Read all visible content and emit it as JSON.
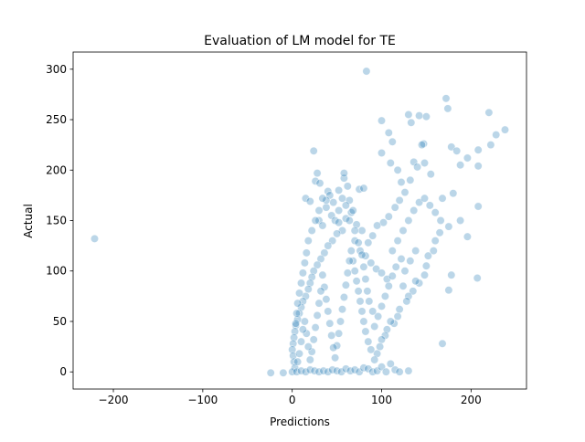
{
  "chart_data": {
    "type": "scatter",
    "title": "Evaluation of LM model for TE",
    "xlabel": "Predictions",
    "ylabel": "Actual",
    "xlim": [
      -245,
      262
    ],
    "ylim": [
      -17,
      317
    ],
    "xticks": [
      -200,
      -100,
      0,
      100,
      200
    ],
    "yticks": [
      0,
      50,
      100,
      150,
      200,
      250,
      300
    ],
    "xtick_labels": [
      "−200",
      "−100",
      "0",
      "100",
      "200"
    ],
    "ytick_labels": [
      "0",
      "50",
      "100",
      "150",
      "200",
      "250",
      "300"
    ],
    "grid": false,
    "legend": "none",
    "marker_color": "#1f77b4",
    "marker_opacity": 0.3,
    "points": [
      [
        -221,
        132
      ],
      [
        83,
        298
      ],
      [
        -24,
        -1
      ],
      [
        -10,
        -1
      ],
      [
        24,
        219
      ],
      [
        28,
        197
      ],
      [
        26,
        189
      ],
      [
        31,
        187
      ],
      [
        58,
        192
      ],
      [
        58,
        197
      ],
      [
        40,
        179
      ],
      [
        15,
        172
      ],
      [
        20,
        169
      ],
      [
        38,
        163
      ],
      [
        52,
        180
      ],
      [
        62,
        184
      ],
      [
        75,
        181
      ],
      [
        80,
        182
      ],
      [
        100,
        249
      ],
      [
        108,
        237
      ],
      [
        112,
        228
      ],
      [
        100,
        217
      ],
      [
        110,
        207
      ],
      [
        118,
        200
      ],
      [
        122,
        188
      ],
      [
        130,
        255
      ],
      [
        133,
        247
      ],
      [
        142,
        254
      ],
      [
        150,
        253
      ],
      [
        147,
        226
      ],
      [
        145,
        225
      ],
      [
        136,
        208
      ],
      [
        172,
        271
      ],
      [
        174,
        261
      ],
      [
        178,
        223
      ],
      [
        184,
        219
      ],
      [
        188,
        205
      ],
      [
        196,
        212
      ],
      [
        208,
        220
      ],
      [
        220,
        257
      ],
      [
        228,
        235
      ],
      [
        238,
        240
      ],
      [
        222,
        225
      ],
      [
        208,
        204
      ],
      [
        180,
        177
      ],
      [
        168,
        172
      ],
      [
        155,
        196
      ],
      [
        148,
        207
      ],
      [
        140,
        203
      ],
      [
        132,
        190
      ],
      [
        126,
        178
      ],
      [
        120,
        170
      ],
      [
        115,
        163
      ],
      [
        108,
        154
      ],
      [
        102,
        148
      ],
      [
        95,
        145
      ],
      [
        90,
        135
      ],
      [
        85,
        128
      ],
      [
        78,
        140
      ],
      [
        72,
        146
      ],
      [
        66,
        158
      ],
      [
        60,
        152
      ],
      [
        56,
        140
      ],
      [
        50,
        137
      ],
      [
        45,
        130
      ],
      [
        40,
        125
      ],
      [
        36,
        118
      ],
      [
        32,
        112
      ],
      [
        28,
        106
      ],
      [
        24,
        100
      ],
      [
        22,
        94
      ],
      [
        20,
        88
      ],
      [
        18,
        82
      ],
      [
        15,
        75
      ],
      [
        12,
        70
      ],
      [
        10,
        64
      ],
      [
        8,
        58
      ],
      [
        6,
        52
      ],
      [
        4,
        46
      ],
      [
        3,
        40
      ],
      [
        2,
        34
      ],
      [
        1,
        28
      ],
      [
        0,
        22
      ],
      [
        1,
        16
      ],
      [
        2,
        10
      ],
      [
        3,
        4
      ],
      [
        0,
        0
      ],
      [
        5,
        0
      ],
      [
        10,
        1
      ],
      [
        15,
        0
      ],
      [
        20,
        2
      ],
      [
        25,
        1
      ],
      [
        30,
        0
      ],
      [
        35,
        1
      ],
      [
        40,
        0
      ],
      [
        45,
        2
      ],
      [
        50,
        1
      ],
      [
        55,
        0
      ],
      [
        60,
        3
      ],
      [
        65,
        1
      ],
      [
        70,
        2
      ],
      [
        75,
        0
      ],
      [
        80,
        4
      ],
      [
        85,
        3
      ],
      [
        90,
        0
      ],
      [
        95,
        1
      ],
      [
        100,
        5
      ],
      [
        105,
        0
      ],
      [
        110,
        8
      ],
      [
        115,
        2
      ],
      [
        120,
        0
      ],
      [
        130,
        1
      ],
      [
        175,
        81
      ],
      [
        168,
        28
      ],
      [
        178,
        96
      ],
      [
        207,
        93
      ],
      [
        208,
        164
      ],
      [
        196,
        134
      ],
      [
        188,
        150
      ],
      [
        175,
        144
      ],
      [
        165,
        138
      ],
      [
        160,
        130
      ],
      [
        158,
        120
      ],
      [
        152,
        115
      ],
      [
        150,
        105
      ],
      [
        148,
        96
      ],
      [
        142,
        88
      ],
      [
        138,
        90
      ],
      [
        135,
        80
      ],
      [
        130,
        75
      ],
      [
        128,
        70
      ],
      [
        124,
        85
      ],
      [
        120,
        62
      ],
      [
        118,
        55
      ],
      [
        114,
        48
      ],
      [
        110,
        50
      ],
      [
        106,
        42
      ],
      [
        104,
        36
      ],
      [
        100,
        32
      ],
      [
        98,
        25
      ],
      [
        95,
        18
      ],
      [
        92,
        12
      ],
      [
        88,
        22
      ],
      [
        85,
        30
      ],
      [
        82,
        40
      ],
      [
        80,
        50
      ],
      [
        78,
        60
      ],
      [
        76,
        70
      ],
      [
        74,
        80
      ],
      [
        72,
        90
      ],
      [
        70,
        100
      ],
      [
        68,
        110
      ],
      [
        66,
        120
      ],
      [
        64,
        110
      ],
      [
        62,
        98
      ],
      [
        60,
        86
      ],
      [
        58,
        74
      ],
      [
        56,
        62
      ],
      [
        54,
        50
      ],
      [
        52,
        38
      ],
      [
        50,
        26
      ],
      [
        48,
        14
      ],
      [
        46,
        24
      ],
      [
        44,
        36
      ],
      [
        42,
        48
      ],
      [
        40,
        60
      ],
      [
        38,
        72
      ],
      [
        36,
        84
      ],
      [
        34,
        96
      ],
      [
        32,
        80
      ],
      [
        30,
        68
      ],
      [
        28,
        56
      ],
      [
        26,
        44
      ],
      [
        24,
        32
      ],
      [
        22,
        20
      ],
      [
        20,
        12
      ],
      [
        18,
        25
      ],
      [
        16,
        38
      ],
      [
        14,
        50
      ],
      [
        12,
        42
      ],
      [
        10,
        30
      ],
      [
        8,
        18
      ],
      [
        6,
        10
      ],
      [
        30,
        150
      ],
      [
        34,
        145
      ],
      [
        44,
        155
      ],
      [
        48,
        150
      ],
      [
        52,
        148
      ],
      [
        64,
        150
      ],
      [
        70,
        130
      ],
      [
        76,
        120
      ],
      [
        82,
        115
      ],
      [
        88,
        108
      ],
      [
        94,
        102
      ],
      [
        100,
        98
      ],
      [
        106,
        92
      ],
      [
        112,
        120
      ],
      [
        118,
        130
      ],
      [
        124,
        140
      ],
      [
        130,
        150
      ],
      [
        136,
        160
      ],
      [
        142,
        168
      ],
      [
        148,
        172
      ],
      [
        154,
        165
      ],
      [
        160,
        158
      ],
      [
        166,
        150
      ],
      [
        138,
        120
      ],
      [
        132,
        110
      ],
      [
        126,
        100
      ],
      [
        122,
        112
      ],
      [
        116,
        104
      ],
      [
        112,
        95
      ],
      [
        108,
        85
      ],
      [
        104,
        75
      ],
      [
        100,
        65
      ],
      [
        96,
        55
      ],
      [
        92,
        45
      ],
      [
        90,
        60
      ],
      [
        86,
        70
      ],
      [
        84,
        80
      ],
      [
        82,
        92
      ],
      [
        80,
        104
      ],
      [
        78,
        116
      ],
      [
        74,
        128
      ],
      [
        70,
        140
      ],
      [
        68,
        160
      ],
      [
        64,
        170
      ],
      [
        60,
        165
      ],
      [
        56,
        172
      ],
      [
        52,
        160
      ],
      [
        46,
        168
      ],
      [
        42,
        175
      ],
      [
        38,
        170
      ],
      [
        34,
        172
      ],
      [
        30,
        160
      ],
      [
        26,
        150
      ],
      [
        22,
        140
      ],
      [
        18,
        130
      ],
      [
        16,
        118
      ],
      [
        14,
        108
      ],
      [
        12,
        98
      ],
      [
        10,
        88
      ],
      [
        8,
        78
      ],
      [
        6,
        68
      ],
      [
        5,
        58
      ],
      [
        4,
        48
      ]
    ]
  }
}
